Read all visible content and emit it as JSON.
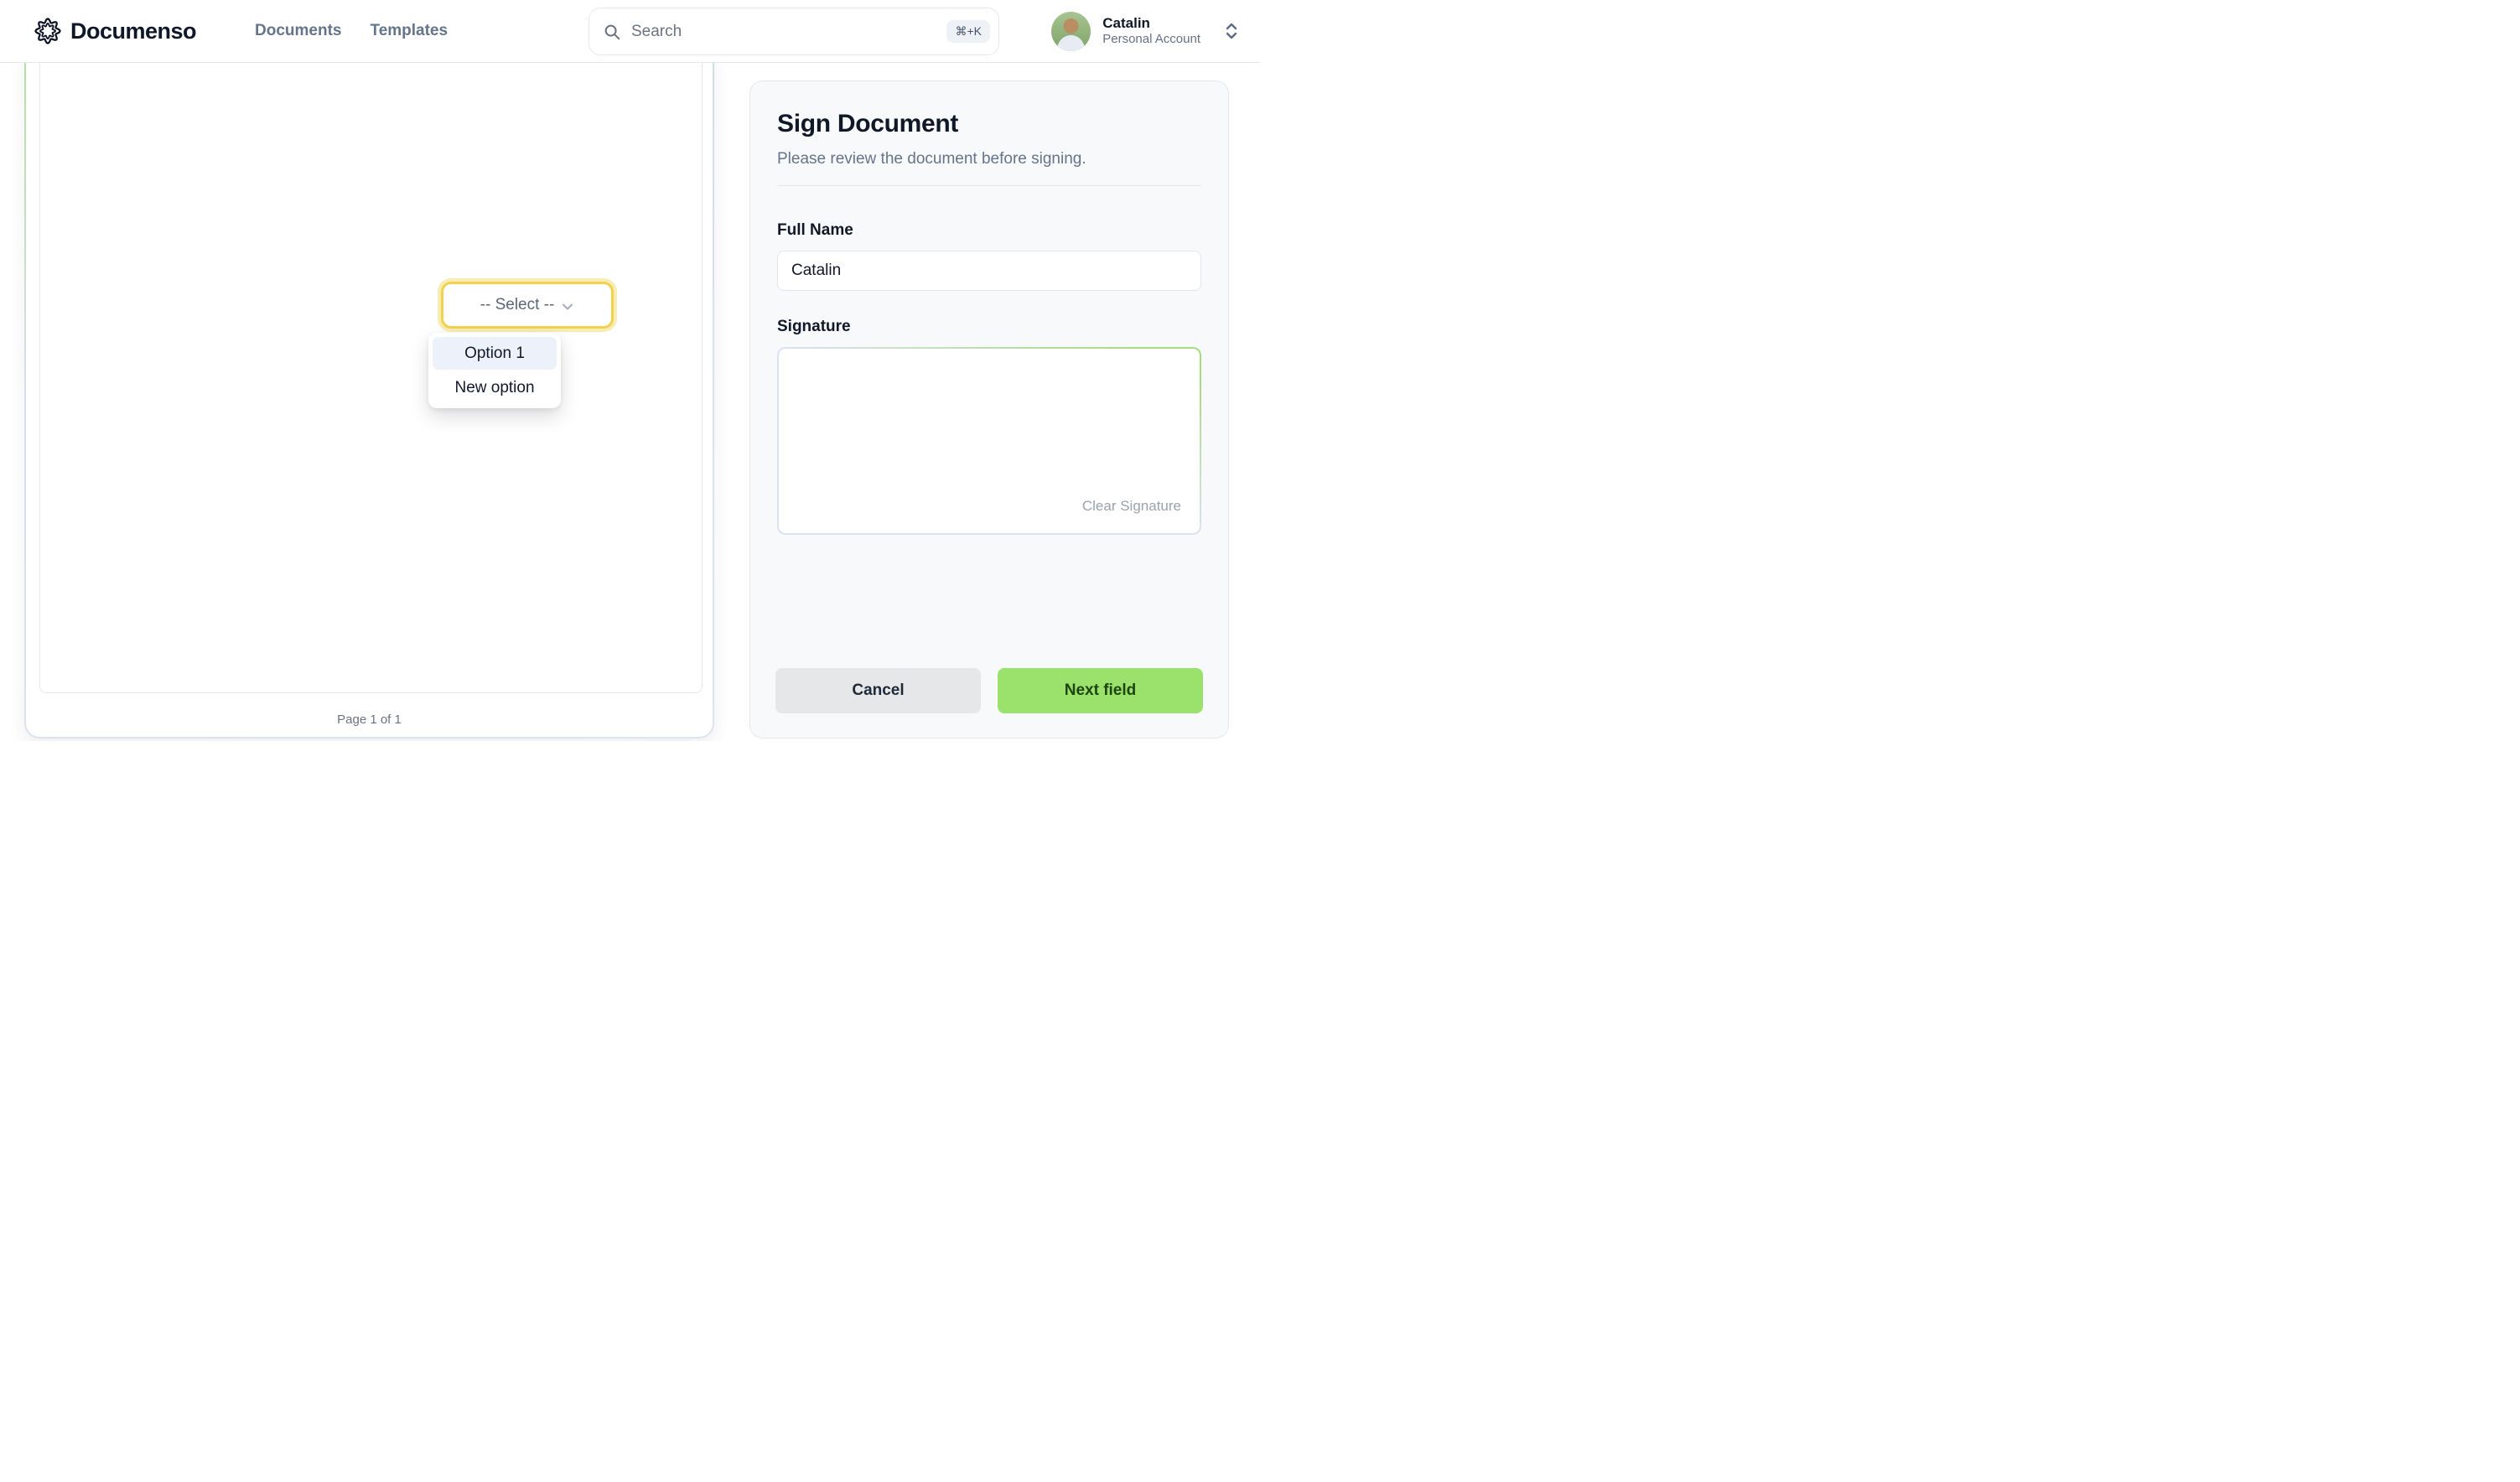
{
  "navbar": {
    "logo_text": "Documenso",
    "links": [
      {
        "label": "Documents"
      },
      {
        "label": "Templates"
      }
    ],
    "search": {
      "placeholder": "Search",
      "shortcut": "⌘+K"
    },
    "user": {
      "name": "Catalin",
      "account_type": "Personal Account"
    }
  },
  "document": {
    "page_indicator": "Page 1 of 1",
    "select_field": {
      "label": "-- Select --"
    },
    "select_menu": {
      "options": [
        {
          "label": "Option 1",
          "highlighted": true
        },
        {
          "label": "New option",
          "highlighted": false
        }
      ]
    }
  },
  "panel": {
    "title": "Sign Document",
    "subtitle": "Please review the document before signing.",
    "full_name": {
      "label": "Full Name",
      "value": "Catalin"
    },
    "signature": {
      "label": "Signature",
      "clear_label": "Clear Signature"
    },
    "buttons": {
      "cancel": "Cancel",
      "next": "Next field"
    }
  },
  "colors": {
    "accent_green": "#9be26c",
    "field_highlight_yellow": "#f2d14b",
    "panel_bg": "#f8f9fb",
    "menu_highlight": "#edf1f9"
  }
}
